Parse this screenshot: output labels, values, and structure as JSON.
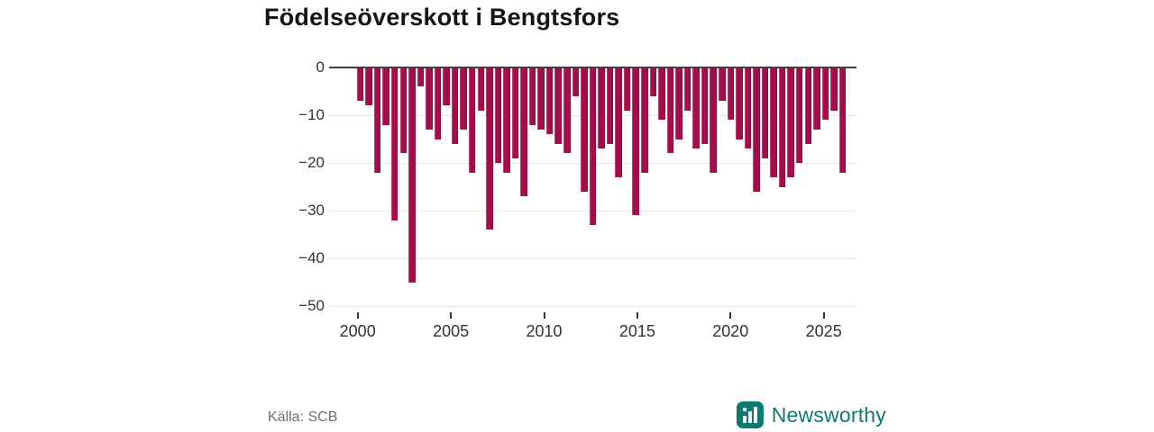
{
  "title": "Födelseöverskott i Bengtsfors",
  "source": "Källa: SCB",
  "branding": {
    "name": "Newsworthy",
    "color": "#0d7a70"
  },
  "chart_data": {
    "type": "bar",
    "title": "Födelseöverskott i Bengtsfors",
    "xlabel": "",
    "ylabel": "",
    "period": "half-year",
    "x_start_year": 2000,
    "x_end_year": 2026.5,
    "x_tick_years": [
      2000,
      2005,
      2010,
      2015,
      2020,
      2025
    ],
    "y_ticks": [
      0,
      -10,
      -20,
      -30,
      -40,
      -50
    ],
    "ylim": [
      -50,
      0
    ],
    "grid": "horizontal",
    "bar_color": "#a30d4a",
    "values": [
      -7,
      -8,
      -22,
      -12,
      -32,
      -18,
      -45,
      -4,
      -13,
      -15,
      -8,
      -16,
      -13,
      -22,
      -9,
      -34,
      -20,
      -22,
      -19,
      -27,
      -12,
      -13,
      -14,
      -16,
      -18,
      -6,
      -26,
      -33,
      -17,
      -16,
      -23,
      -9,
      -31,
      -22,
      -6,
      -11,
      -18,
      -15,
      -9,
      -17,
      -16,
      -22,
      -7,
      -11,
      -15,
      -17,
      -26,
      -19,
      -23,
      -25,
      -23,
      -20,
      -16,
      -13,
      -11,
      -9,
      -22
    ]
  }
}
